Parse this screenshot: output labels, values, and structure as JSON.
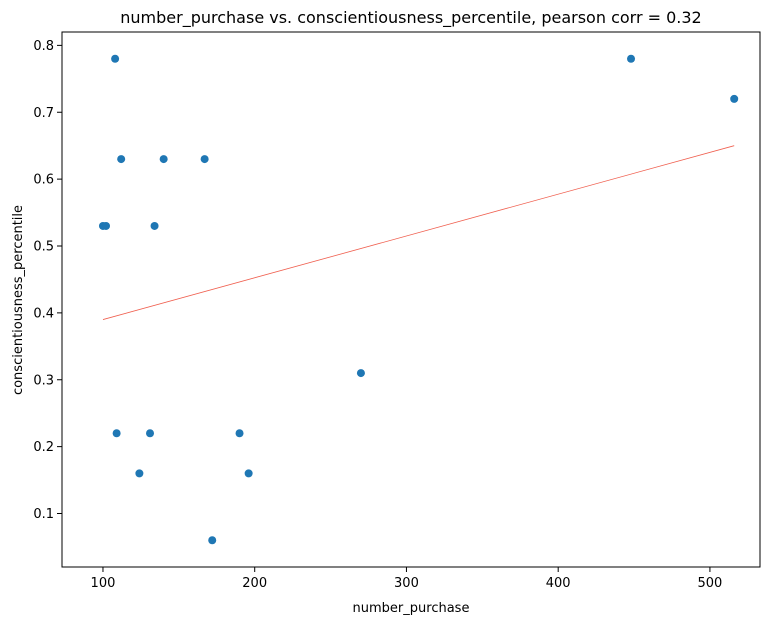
{
  "chart_data": {
    "type": "scatter",
    "title": "number_purchase vs. conscientiousness_percentile, pearson corr = 0.32",
    "xlabel": "number_purchase",
    "ylabel": "conscientiousness_percentile",
    "xlim": [
      73,
      533
    ],
    "ylim": [
      0.02,
      0.82
    ],
    "xticks": [
      100,
      200,
      300,
      400,
      500
    ],
    "yticks": [
      0.1,
      0.2,
      0.3,
      0.4,
      0.5,
      0.6,
      0.7,
      0.8
    ],
    "xtick_labels": [
      "100",
      "200",
      "300",
      "400",
      "500"
    ],
    "ytick_labels": [
      "0.1",
      "0.2",
      "0.3",
      "0.4",
      "0.5",
      "0.6",
      "0.7",
      "0.8"
    ],
    "grid": false,
    "points": [
      {
        "x": 108,
        "y": 0.78
      },
      {
        "x": 448,
        "y": 0.78
      },
      {
        "x": 516,
        "y": 0.72
      },
      {
        "x": 112,
        "y": 0.63
      },
      {
        "x": 140,
        "y": 0.63
      },
      {
        "x": 167,
        "y": 0.63
      },
      {
        "x": 100,
        "y": 0.53
      },
      {
        "x": 102,
        "y": 0.53
      },
      {
        "x": 134,
        "y": 0.53
      },
      {
        "x": 270,
        "y": 0.31
      },
      {
        "x": 109,
        "y": 0.22
      },
      {
        "x": 131,
        "y": 0.22
      },
      {
        "x": 190,
        "y": 0.22
      },
      {
        "x": 124,
        "y": 0.16
      },
      {
        "x": 196,
        "y": 0.16
      },
      {
        "x": 172,
        "y": 0.06
      }
    ],
    "trendline": {
      "x": [
        100,
        516
      ],
      "y": [
        0.39,
        0.65
      ]
    },
    "colors": {
      "points": "#1f77b4",
      "trendline": "#f06050"
    }
  }
}
